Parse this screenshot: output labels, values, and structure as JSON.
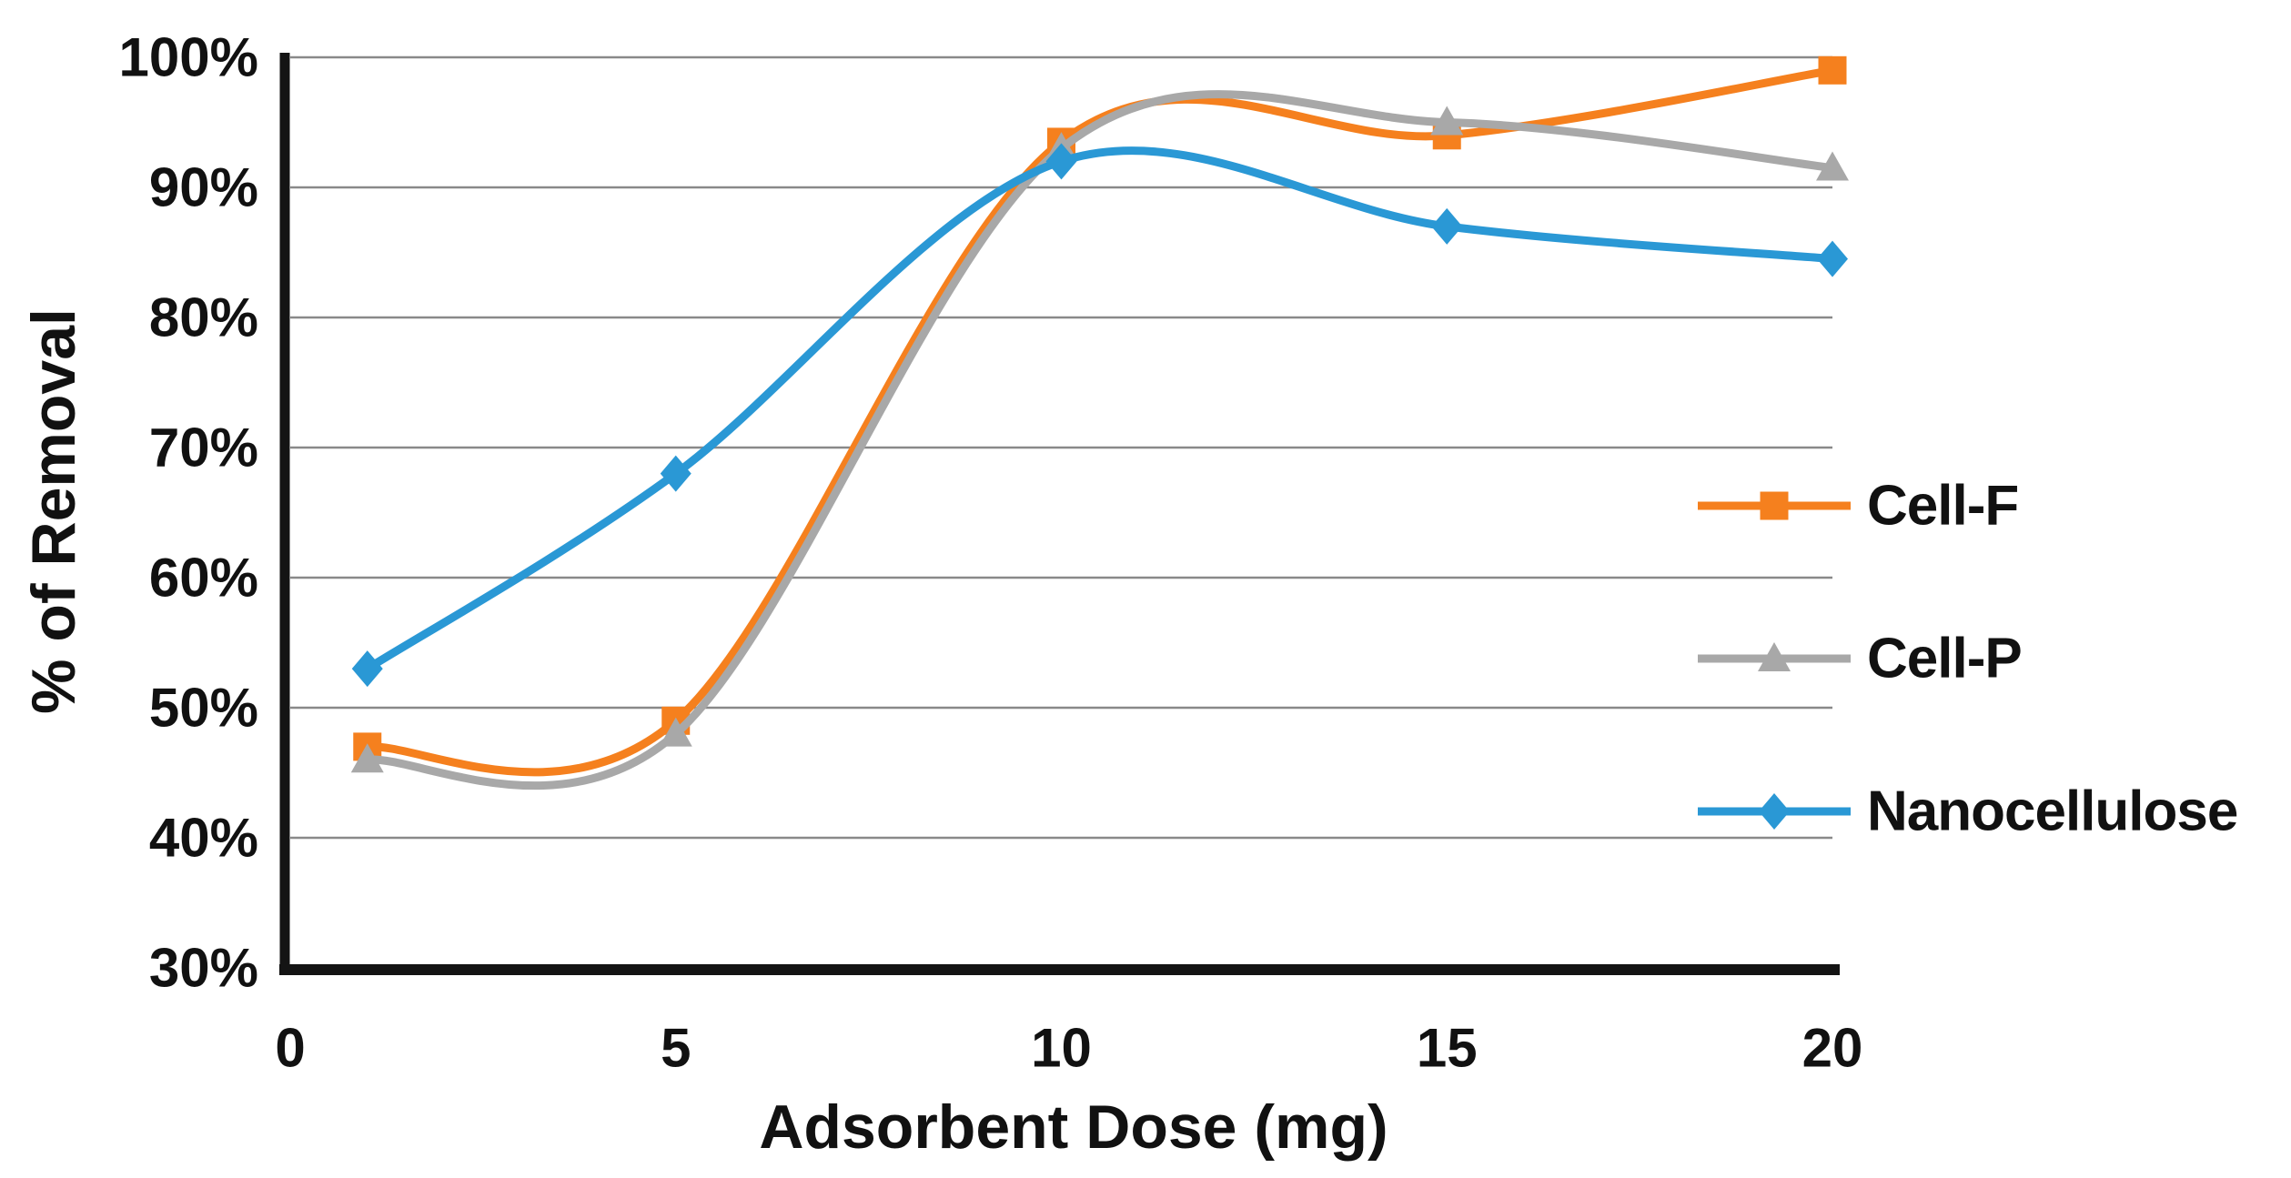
{
  "chart_data": {
    "type": "line",
    "line_style": "smooth",
    "title": "",
    "xlabel": "Adsorbent Dose (mg)",
    "ylabel": "% of Removal",
    "x": [
      1,
      5,
      10,
      15,
      20
    ],
    "series": [
      {
        "name": "Cell-F",
        "color": "#F5801E",
        "marker": "square",
        "values": [
          47,
          49,
          93.5,
          94,
          99
        ]
      },
      {
        "name": "Cell-P",
        "color": "#A8A8A8",
        "marker": "triangle",
        "values": [
          46,
          48,
          93,
          95,
          91.5
        ]
      },
      {
        "name": "Nanocellulose",
        "color": "#2A98D5",
        "marker": "diamond",
        "values": [
          53,
          68,
          92,
          87,
          84.5
        ]
      }
    ],
    "xlim": [
      0,
      20
    ],
    "ylim": [
      30,
      100
    ],
    "xticks": [
      {
        "value": 0,
        "label": "0"
      },
      {
        "value": 5,
        "label": "5"
      },
      {
        "value": 10,
        "label": "10"
      },
      {
        "value": 15,
        "label": "15"
      },
      {
        "value": 20,
        "label": "20"
      }
    ],
    "yticks": [
      {
        "value": 100,
        "label": "100%"
      },
      {
        "value": 90,
        "label": "90%"
      },
      {
        "value": 80,
        "label": "80%"
      },
      {
        "value": 70,
        "label": "70%"
      },
      {
        "value": 60,
        "label": "60%"
      },
      {
        "value": 50,
        "label": "50%"
      },
      {
        "value": 40,
        "label": "40%"
      },
      {
        "value": 30,
        "label": "30%"
      }
    ],
    "grid": "horizontal",
    "legend_position": "right-middle",
    "colors": {
      "gridline": "#898989",
      "axis": "#141414",
      "text": "#111111",
      "background": "#FFFFFF"
    }
  }
}
